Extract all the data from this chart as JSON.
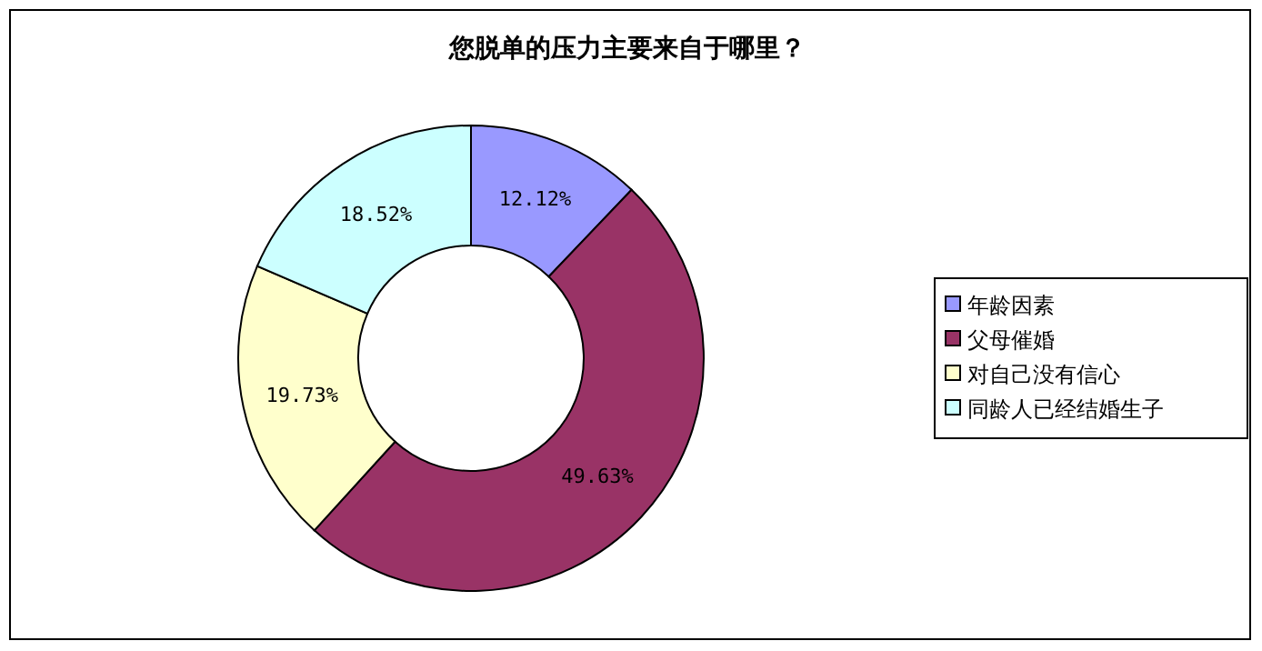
{
  "chart_data": {
    "type": "donut",
    "title": "您脱单的压力主要来自于哪里？",
    "categories": [
      "年龄因素",
      "父母催婚",
      "对自己没有信心",
      "同龄人已经结婚生子"
    ],
    "values": [
      12.12,
      49.63,
      19.73,
      18.52
    ],
    "colors": [
      "#9999ff",
      "#993366",
      "#ffffcc",
      "#ccffff"
    ],
    "value_labels": [
      "12.12%",
      "49.63%",
      "19.73%",
      "18.52%"
    ],
    "legend": "right"
  }
}
